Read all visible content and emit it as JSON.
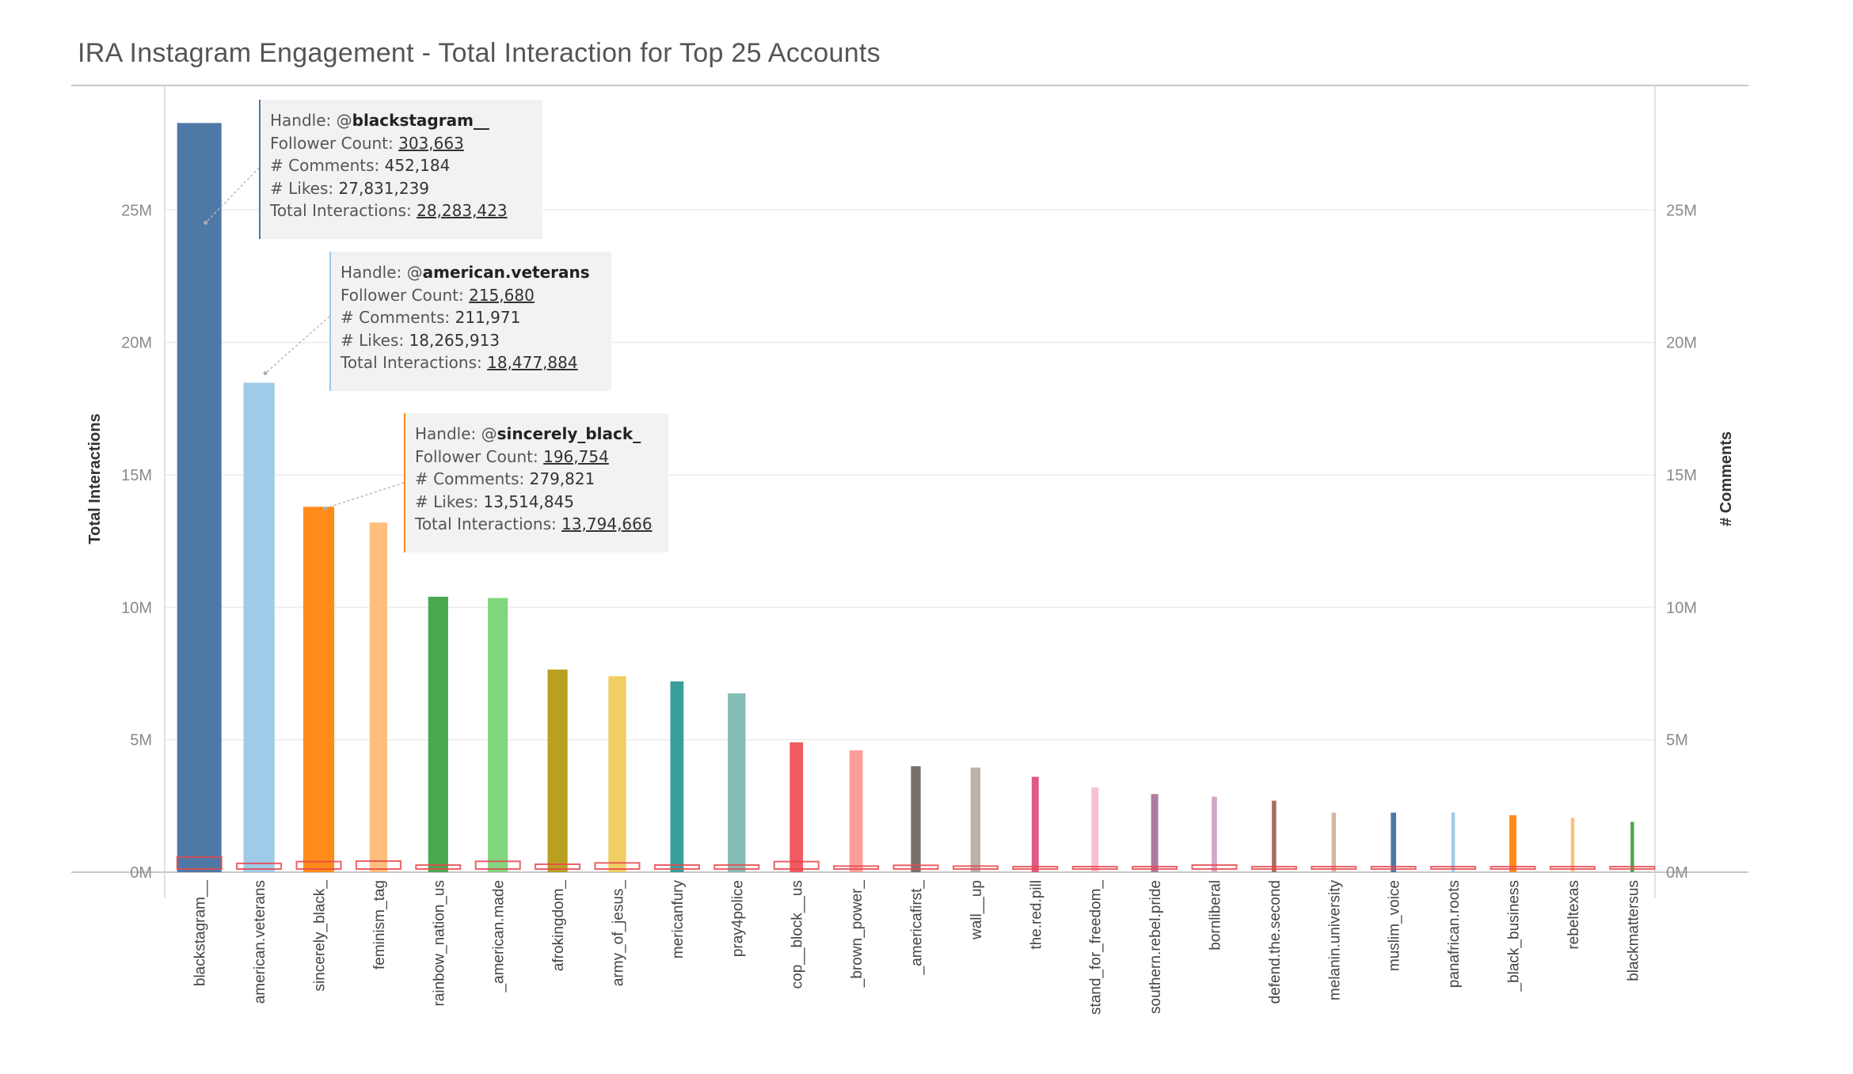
{
  "page": {
    "title": "IRA Instagram Engagement - Total Interaction for Top 25 Accounts"
  },
  "chart_data": {
    "type": "bar",
    "title": "IRA Instagram Engagement - Total Interaction for Top 25 Accounts",
    "ylabel": "Total Interactions",
    "y2label": "# Comments",
    "xlabel": "",
    "ylim": [
      0,
      29700000
    ],
    "y2lim": [
      0,
      29700000
    ],
    "yticks": [
      0,
      5000000,
      10000000,
      15000000,
      20000000,
      25000000
    ],
    "ytick_labels": [
      "0M",
      "5M",
      "10M",
      "15M",
      "20M",
      "25M"
    ],
    "y2tick_labels": [
      "0M",
      "5M",
      "10M",
      "15M",
      "20M",
      "25M"
    ],
    "grid": true,
    "legend": "none",
    "categories": [
      "blackstagram__",
      "american.veterans",
      "sincerely_black_",
      "feminism_tag",
      "rainbow_nation_us",
      "_american.made",
      "afrokingdom_",
      "army_of_jesus_",
      "mericanfury",
      "pray4police",
      "cop__block__us",
      "_brown_power_",
      "_americafirst_",
      "wall__up",
      "the.red.pill",
      "stand_for_freedom_",
      "southern.rebel.pride",
      "bornliberal",
      "defend.the.second",
      "melanin.university",
      "muslim_voice",
      "panafrican.roots",
      "_black_business",
      "rebeltexas",
      "blackmattersus"
    ],
    "series": [
      {
        "values": [
          28283423,
          18477884,
          13794666,
          13200000,
          10400000,
          10350000,
          7650000,
          7400000,
          7200000,
          6750000,
          4900000,
          4600000,
          4000000,
          3950000,
          3600000,
          3200000,
          2950000,
          2850000,
          2700000,
          2250000,
          2250000,
          2250000,
          2150000,
          2050000,
          1900000
        ],
        "colors": [
          "#4e79a7",
          "#a0cbe8",
          "#ff8c1a",
          "#ffbe7d",
          "#4aa84f",
          "#82d67e",
          "#b9a021",
          "#f1ce63",
          "#3a9e99",
          "#86bcb6",
          "#f05a60",
          "#ff9d9a",
          "#79706e",
          "#bab0ac",
          "#e05a84",
          "#fabfd2",
          "#b07aa1",
          "#d4a6c8",
          "#a86f5c",
          "#d7b5a6",
          "#4e79a7",
          "#a0cbe8",
          "#ff8c1a",
          "#ffbe7d",
          "#4aa84f"
        ],
        "bar_weight": [
          1.0,
          0.7,
          0.7,
          0.4,
          0.45,
          0.45,
          0.45,
          0.4,
          0.3,
          0.4,
          0.3,
          0.3,
          0.22,
          0.22,
          0.16,
          0.16,
          0.16,
          0.12,
          0.1,
          0.1,
          0.12,
          0.08,
          0.16,
          0.08,
          0.08
        ]
      },
      {
        "values": [
          452184,
          211971,
          279821,
          300000,
          150000,
          290000,
          180000,
          230000,
          150000,
          150000,
          280000,
          110000,
          140000,
          110000,
          80000,
          40000,
          90000,
          150000,
          60000,
          50000,
          60000,
          20000,
          90000,
          50000,
          20000
        ],
        "color": "#e8474c"
      }
    ]
  },
  "tooltips": [
    {
      "handle_label": "Handle: @",
      "handle": "blackstagram__",
      "follower_label": "Follower Count: ",
      "followers": "303,663",
      "comments_label": "# Comments: ",
      "comments": "452,184",
      "likes_label": "# Likes: ",
      "likes": "27,831,239",
      "total_label": "Total Interactions: ",
      "total": "28,283,423",
      "accent": "#4e79a7"
    },
    {
      "handle_label": "Handle: @",
      "handle": "american.veterans",
      "follower_label": "Follower Count: ",
      "followers": "215,680",
      "comments_label": "# Comments: ",
      "comments": "211,971",
      "likes_label": "# Likes: ",
      "likes": "18,265,913",
      "total_label": "Total Interactions: ",
      "total": "18,477,884",
      "accent": "#a0cbe8"
    },
    {
      "handle_label": "Handle: @",
      "handle": "sincerely_black_",
      "follower_label": "Follower Count: ",
      "followers": "196,754",
      "comments_label": "# Comments: ",
      "comments": "279,821",
      "likes_label": "# Likes: ",
      "likes": "13,514,845",
      "total_label": "Total Interactions: ",
      "total": "13,794,666",
      "accent": "#ff8c1a"
    }
  ]
}
